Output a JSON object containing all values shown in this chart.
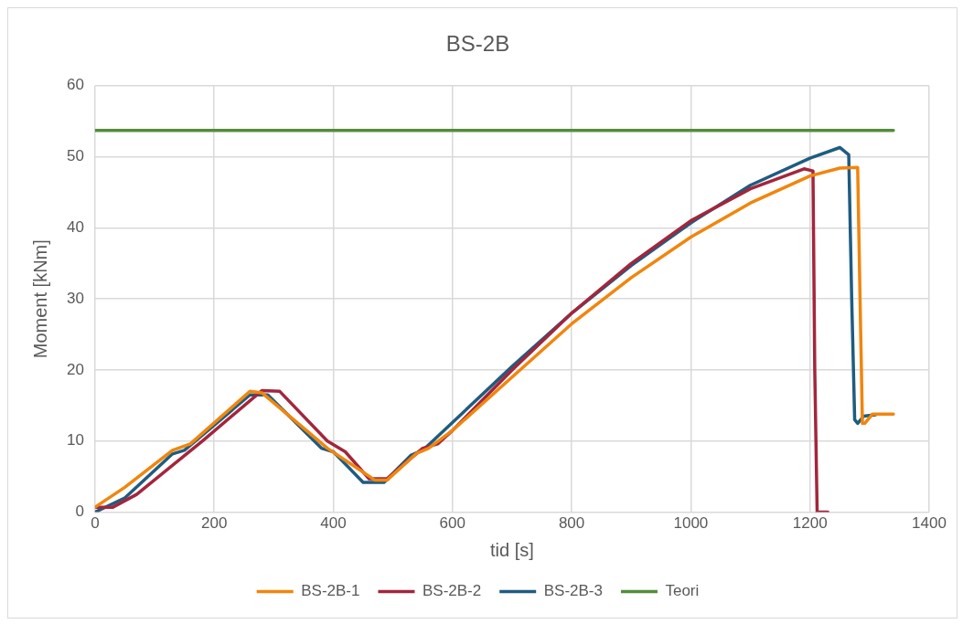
{
  "chart_data": {
    "type": "line",
    "title": "BS-2B",
    "xlabel": "tid [s]",
    "ylabel": "Moment [kNm]",
    "xlim": [
      0,
      1400
    ],
    "xticks": [
      0,
      200,
      400,
      600,
      800,
      1000,
      1200,
      1400
    ],
    "ylim": [
      0,
      60
    ],
    "yticks": [
      0,
      10,
      20,
      30,
      40,
      50,
      60
    ],
    "grid": true,
    "legend": "bottom",
    "marker": "none",
    "line_style": "solid",
    "series": [
      {
        "name": "BS-2B-1",
        "color": "#f0860e",
        "x": [
          0,
          50,
          130,
          160,
          260,
          280,
          390,
          470,
          490,
          540,
          560,
          600,
          700,
          800,
          900,
          1000,
          1100,
          1200,
          1250,
          1280,
          1284,
          1288,
          1292,
          1305,
          1340
        ],
        "values": [
          0.7,
          3.5,
          8.7,
          9.6,
          17,
          16.8,
          9,
          4.5,
          4.5,
          8.3,
          9,
          11.5,
          19,
          26.5,
          33,
          38.7,
          43.5,
          47.3,
          48.4,
          48.5,
          30,
          12.5,
          12.5,
          13.8,
          13.8
        ]
      },
      {
        "name": "BS-2B-2",
        "color": "#a3263c",
        "x": [
          0,
          30,
          70,
          180,
          280,
          310,
          390,
          420,
          460,
          490,
          550,
          575,
          600,
          700,
          800,
          900,
          1000,
          1100,
          1190,
          1205,
          1208,
          1212,
          1230
        ],
        "values": [
          0.7,
          0.7,
          2.5,
          10,
          17.1,
          17,
          10,
          8.5,
          4.7,
          4.7,
          9,
          9.6,
          11.5,
          20,
          28,
          35,
          41,
          45.5,
          48.3,
          48,
          20,
          0,
          0
        ]
      },
      {
        "name": "BS-2B-3",
        "color": "#1f5c80",
        "x": [
          0,
          50,
          130,
          150,
          260,
          290,
          380,
          400,
          450,
          485,
          530,
          550,
          700,
          800,
          900,
          1000,
          1100,
          1200,
          1250,
          1265,
          1270,
          1275,
          1280,
          1290,
          1310
        ],
        "values": [
          0,
          2,
          8.2,
          8.7,
          16.5,
          16.5,
          9,
          8.5,
          4.2,
          4.2,
          8,
          8.7,
          20.5,
          28,
          34.7,
          40.7,
          46,
          49.8,
          51.3,
          50.3,
          30,
          13,
          12.5,
          13.5,
          13.7
        ]
      },
      {
        "name": "Teori",
        "color": "#538d3a",
        "x": [
          0,
          1340
        ],
        "values": [
          53.7,
          53.7
        ]
      }
    ]
  }
}
